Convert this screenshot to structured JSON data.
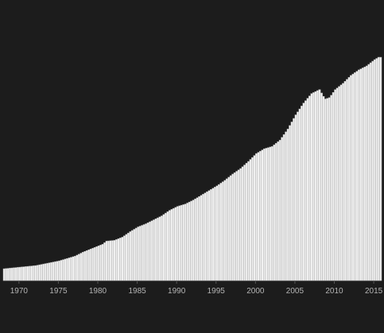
{
  "colors": {
    "background": "#1c1c1c",
    "bar_fill": "#f2f2f2",
    "bar_stroke": "#aaaaaa",
    "axis_line": "#555555",
    "tick_label": "#b4b4b4"
  },
  "chart_data": {
    "type": "bar",
    "title": "",
    "xlabel": "",
    "ylabel": "",
    "grid": false,
    "legend": "none",
    "x_range": [
      1968,
      2016
    ],
    "ylim": [
      0,
      282
    ],
    "x_ticks": [
      "1970",
      "1975",
      "1980",
      "1985",
      "1990",
      "1995",
      "2000",
      "2005",
      "2010",
      "2015"
    ],
    "x_tick_label_values": [
      1970,
      1975,
      1980,
      1985,
      1990,
      1995,
      2000,
      2005,
      2010,
      2015
    ],
    "x_tick_labels": [
      "1970",
      "1975",
      "1980",
      "1985",
      "1990",
      "1995",
      "2000",
      "2005",
      "2010",
      "2015"
    ],
    "anchor_points": [
      [
        1968.0,
        15
      ],
      [
        1969.0,
        16
      ],
      [
        1970.0,
        17
      ],
      [
        1971.0,
        18
      ],
      [
        1972.0,
        19
      ],
      [
        1973.0,
        21
      ],
      [
        1974.0,
        23
      ],
      [
        1975.0,
        25
      ],
      [
        1976.0,
        28
      ],
      [
        1977.0,
        31
      ],
      [
        1978.0,
        36
      ],
      [
        1979.0,
        40
      ],
      [
        1980.0,
        44
      ],
      [
        1980.5,
        46
      ],
      [
        1981.0,
        50
      ],
      [
        1982.0,
        51
      ],
      [
        1983.0,
        55
      ],
      [
        1984.0,
        62
      ],
      [
        1985.0,
        68
      ],
      [
        1986.0,
        72
      ],
      [
        1987.0,
        77
      ],
      [
        1988.0,
        82
      ],
      [
        1989.0,
        89
      ],
      [
        1990.0,
        94
      ],
      [
        1991.0,
        97
      ],
      [
        1992.0,
        102
      ],
      [
        1993.0,
        108
      ],
      [
        1994.0,
        114
      ],
      [
        1995.0,
        120
      ],
      [
        1996.0,
        127
      ],
      [
        1997.0,
        135
      ],
      [
        1998.0,
        142
      ],
      [
        1999.0,
        151
      ],
      [
        2000.0,
        161
      ],
      [
        2001.0,
        167
      ],
      [
        2002.0,
        170
      ],
      [
        2003.0,
        178
      ],
      [
        2004.0,
        192
      ],
      [
        2005.0,
        210
      ],
      [
        2006.0,
        225
      ],
      [
        2007.0,
        237
      ],
      [
        2008.0,
        242
      ],
      [
        2008.7,
        230
      ],
      [
        2009.3,
        232
      ],
      [
        2010.0,
        242
      ],
      [
        2011.0,
        250
      ],
      [
        2012.0,
        260
      ],
      [
        2013.0,
        267
      ],
      [
        2014.0,
        272
      ],
      [
        2015.0,
        280
      ],
      [
        2015.5,
        283
      ]
    ]
  }
}
